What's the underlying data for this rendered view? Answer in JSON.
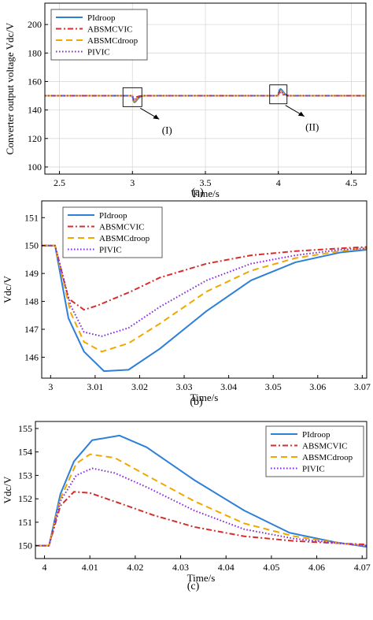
{
  "colors": {
    "PIdroop": "#2e7fd6",
    "ABSMCVIC": "#d62d2d",
    "ABSMCdroop": "#f0a800",
    "PIVIC": "#8a2be2"
  },
  "chart_data": [
    {
      "type": "line",
      "caption": "(a)",
      "xlabel": "Time/s",
      "ylabel": "Converter output voltage Vdc/V",
      "xlim": [
        2.4,
        4.6
      ],
      "ylim": [
        95,
        215
      ],
      "xticks": [
        2.5,
        3,
        3.5,
        4,
        4.5
      ],
      "yticks": [
        100,
        120,
        140,
        160,
        180,
        200
      ],
      "grid": true,
      "legend": "top-left",
      "annotations": [
        {
          "label": "(I)",
          "x": 3.02,
          "y": 149
        },
        {
          "label": "(II)",
          "x": 4.02,
          "y": 151
        }
      ],
      "series": [
        {
          "name": "PIdroop",
          "style": "solid",
          "x": [
            2.4,
            2.999,
            3.002,
            3.0075,
            3.012,
            3.0175,
            3.025,
            3.035,
            3.045,
            3.055,
            3.065,
            3.07,
            3.08,
            3.999,
            4.002,
            4.0065,
            4.0105,
            4.0165,
            4.0225,
            4.033,
            4.044,
            4.054,
            4.064,
            4.07,
            4.08,
            4.6
          ],
          "y": [
            150,
            150,
            149.6,
            146.2,
            145.5,
            145.55,
            146.3,
            147.6,
            148.7,
            149.4,
            149.75,
            149.9,
            150,
            150,
            152.2,
            153.6,
            154.5,
            154.7,
            154.2,
            152.8,
            151.5,
            150.5,
            150.2,
            150,
            150,
            150
          ]
        },
        {
          "name": "ABSMCVIC",
          "style": "dashdot",
          "x": [
            2.4,
            2.999,
            3.002,
            3.006,
            3.0105,
            3.018,
            3.028,
            3.038,
            3.048,
            3.058,
            3.068,
            3.08,
            3.999,
            4.002,
            4.0065,
            4.01,
            4.016,
            4.024,
            4.033,
            4.044,
            4.055,
            4.065,
            4.08,
            4.6
          ],
          "y": [
            150,
            150,
            148.3,
            147.7,
            147.85,
            148.4,
            149.0,
            149.45,
            149.7,
            149.82,
            149.9,
            150,
            150,
            151.8,
            152.3,
            152.25,
            151.85,
            151.3,
            150.8,
            150.4,
            150.2,
            150.1,
            150,
            150
          ]
        },
        {
          "name": "ABSMCdroop",
          "style": "dashed",
          "x": [
            2.4,
            2.999,
            3.003,
            3.007,
            3.0115,
            3.0175,
            3.027,
            3.037,
            3.047,
            3.057,
            3.067,
            3.08,
            3.999,
            4.003,
            4.007,
            4.01,
            4.0155,
            4.0225,
            4.033,
            4.044,
            4.055,
            4.065,
            4.08,
            4.6
          ],
          "y": [
            150,
            150,
            148.0,
            146.6,
            146.2,
            146.5,
            147.4,
            148.4,
            149.1,
            149.6,
            149.8,
            150,
            150,
            152.6,
            153.5,
            153.9,
            153.75,
            153.0,
            151.9,
            151.0,
            150.4,
            150.1,
            150,
            150
          ]
        },
        {
          "name": "PIVIC",
          "style": "dotted",
          "x": [
            2.4,
            2.999,
            3.0035,
            3.007,
            3.0115,
            3.0175,
            3.027,
            3.037,
            3.047,
            3.057,
            3.067,
            3.08,
            3.999,
            4.0035,
            4.007,
            4.0105,
            4.0155,
            4.0225,
            4.033,
            4.044,
            4.055,
            4.065,
            4.08,
            4.6
          ],
          "y": [
            150,
            150,
            147.8,
            146.9,
            146.75,
            147.05,
            148.0,
            148.8,
            149.35,
            149.65,
            149.85,
            150,
            150,
            152.4,
            153.0,
            153.3,
            153.1,
            152.5,
            151.6,
            150.8,
            150.3,
            150.1,
            150,
            150
          ]
        }
      ]
    },
    {
      "type": "line",
      "caption": "(b)",
      "xlabel": "Time/s",
      "ylabel": "Vdc/V",
      "xlim": [
        2.998,
        3.071
      ],
      "ylim": [
        145.25,
        151.6
      ],
      "xticks": [
        3,
        3.01,
        3.02,
        3.03,
        3.04,
        3.05,
        3.06,
        3.07
      ],
      "yticks": [
        146,
        147,
        148,
        149,
        150,
        151
      ],
      "grid": false,
      "legend": "top-center",
      "series": [
        {
          "name": "PIdroop",
          "style": "solid",
          "x": [
            2.998,
            3.0,
            3.001,
            3.004,
            3.0075,
            3.012,
            3.0175,
            3.0245,
            3.035,
            3.045,
            3.055,
            3.065,
            3.071
          ],
          "y": [
            150,
            150,
            150,
            147.4,
            146.2,
            145.5,
            145.55,
            146.3,
            147.65,
            148.75,
            149.4,
            149.75,
            149.85
          ]
        },
        {
          "name": "ABSMCVIC",
          "style": "dashdot",
          "x": [
            2.998,
            3.0,
            3.001,
            3.004,
            3.0075,
            3.0105,
            3.018,
            3.0245,
            3.035,
            3.045,
            3.055,
            3.065,
            3.071
          ],
          "y": [
            150,
            150,
            150,
            148.1,
            147.7,
            147.85,
            148.35,
            148.85,
            149.35,
            149.65,
            149.8,
            149.9,
            149.95
          ]
        },
        {
          "name": "ABSMCdroop",
          "style": "dashed",
          "x": [
            2.998,
            3.0,
            3.001,
            3.0045,
            3.0075,
            3.0115,
            3.0175,
            3.0245,
            3.035,
            3.045,
            3.055,
            3.065,
            3.071
          ],
          "y": [
            150,
            150,
            150,
            147.6,
            146.55,
            146.2,
            146.5,
            147.2,
            148.35,
            149.1,
            149.55,
            149.8,
            149.9
          ]
        },
        {
          "name": "PIVIC",
          "style": "dotted",
          "x": [
            2.998,
            3.0,
            3.001,
            3.0045,
            3.0075,
            3.0115,
            3.0175,
            3.0245,
            3.035,
            3.045,
            3.055,
            3.065,
            3.071
          ],
          "y": [
            150,
            150,
            150,
            147.85,
            146.9,
            146.75,
            147.05,
            147.8,
            148.75,
            149.35,
            149.65,
            149.85,
            149.9
          ]
        }
      ]
    },
    {
      "type": "line",
      "caption": "(c)",
      "xlabel": "Time/s",
      "ylabel": "Vdc/V",
      "xlim": [
        3.998,
        4.071
      ],
      "ylim": [
        149.45,
        155.3
      ],
      "xticks": [
        4,
        4.01,
        4.02,
        4.03,
        4.04,
        4.05,
        4.06,
        4.07
      ],
      "yticks": [
        150,
        151,
        152,
        153,
        154,
        155
      ],
      "grid": false,
      "legend": "top-right",
      "series": [
        {
          "name": "PIdroop",
          "style": "solid",
          "x": [
            3.998,
            4.0,
            4.001,
            4.0035,
            4.0065,
            4.0105,
            4.0165,
            4.0225,
            4.033,
            4.044,
            4.054,
            4.064,
            4.071
          ],
          "y": [
            150,
            150,
            150,
            152.2,
            153.6,
            154.5,
            154.7,
            154.2,
            152.8,
            151.5,
            150.55,
            150.15,
            149.95
          ]
        },
        {
          "name": "ABSMCVIC",
          "style": "dashdot",
          "x": [
            3.998,
            4.0,
            4.001,
            4.0035,
            4.0065,
            4.01,
            4.016,
            4.024,
            4.033,
            4.044,
            4.055,
            4.065,
            4.071
          ],
          "y": [
            150,
            150,
            150,
            151.7,
            152.3,
            152.25,
            151.85,
            151.3,
            150.8,
            150.4,
            150.2,
            150.1,
            150.05
          ]
        },
        {
          "name": "ABSMCdroop",
          "style": "dashed",
          "x": [
            3.998,
            4.0,
            4.001,
            4.0035,
            4.007,
            4.01,
            4.0155,
            4.0225,
            4.033,
            4.044,
            4.055,
            4.065,
            4.071
          ],
          "y": [
            150,
            150,
            150,
            152.0,
            153.5,
            153.9,
            153.75,
            153.0,
            151.9,
            150.95,
            150.4,
            150.1,
            150.0
          ]
        },
        {
          "name": "PIVIC",
          "style": "dotted",
          "x": [
            3.998,
            4.0,
            4.001,
            4.0035,
            4.007,
            4.0105,
            4.0155,
            4.0225,
            4.033,
            4.044,
            4.055,
            4.065,
            4.071
          ],
          "y": [
            150,
            150,
            150,
            151.9,
            153.0,
            153.3,
            153.1,
            152.5,
            151.5,
            150.7,
            150.3,
            150.1,
            150.0
          ]
        }
      ]
    }
  ]
}
